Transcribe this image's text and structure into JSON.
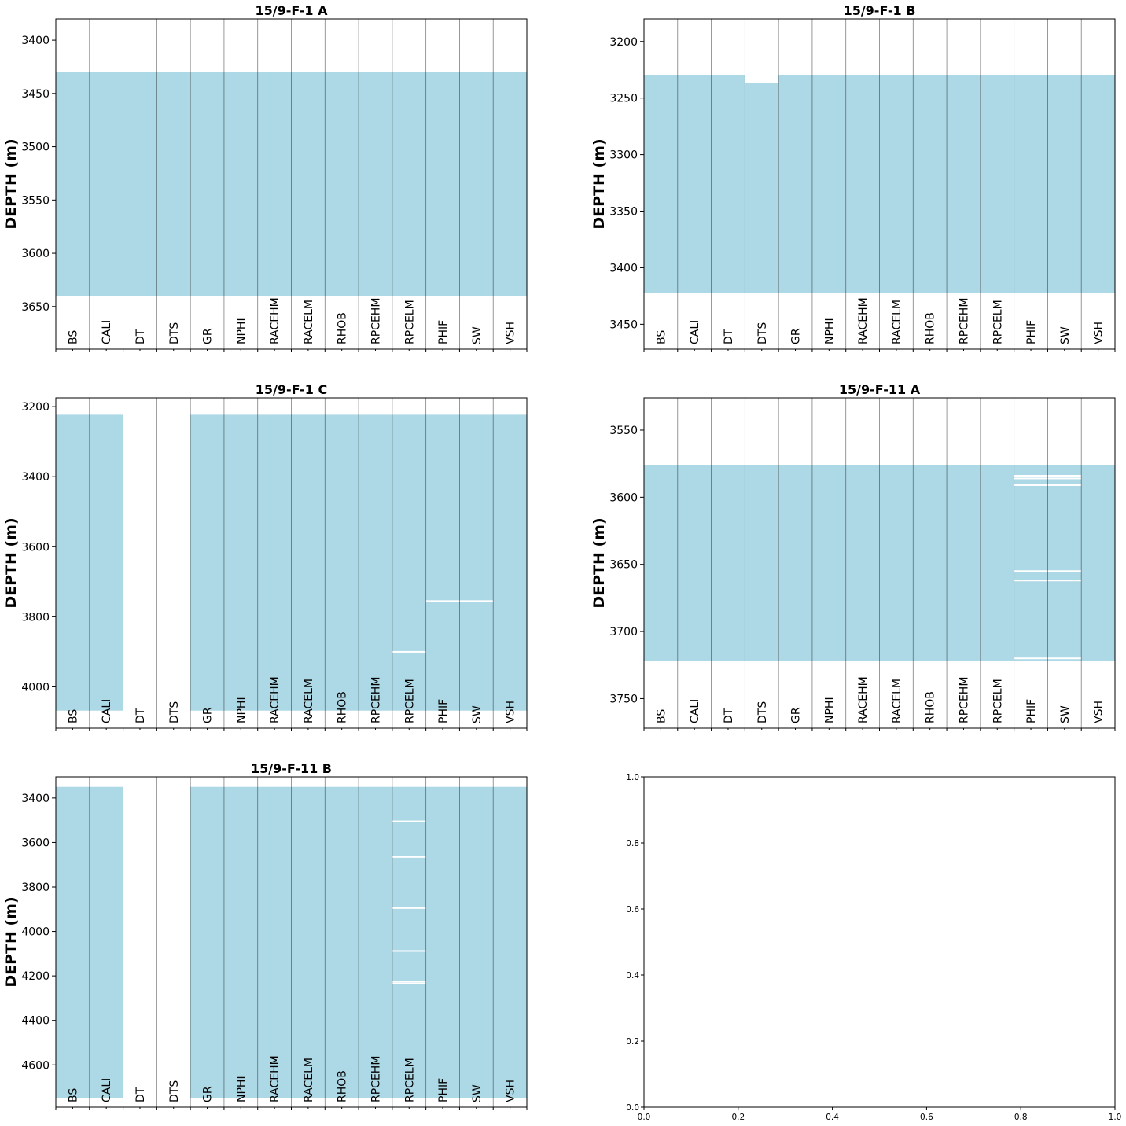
{
  "chart_data": [
    {
      "type": "heatmap",
      "title": "15/9-F-1 A",
      "ylabel": "DEPTH (m)",
      "ylim": [
        3690,
        3380
      ],
      "yticks": [
        3400,
        3450,
        3500,
        3550,
        3600,
        3650
      ],
      "columns": [
        "BS",
        "CALI",
        "DT",
        "DTS",
        "GR",
        "NPHI",
        "RACEHM",
        "RACELM",
        "RHOB",
        "RPCEHM",
        "RPCELM",
        "PHIF",
        "SW",
        "VSH"
      ],
      "fill_color": "#add8e6",
      "coverage": [
        {
          "curve": "BS",
          "top": 3430,
          "bottom": 3640
        },
        {
          "curve": "CALI",
          "top": 3430,
          "bottom": 3640
        },
        {
          "curve": "DT",
          "top": 3430,
          "bottom": 3640
        },
        {
          "curve": "DTS",
          "top": 3430,
          "bottom": 3640
        },
        {
          "curve": "GR",
          "top": 3430,
          "bottom": 3640
        },
        {
          "curve": "NPHI",
          "top": 3430,
          "bottom": 3640
        },
        {
          "curve": "RACEHM",
          "top": 3430,
          "bottom": 3640
        },
        {
          "curve": "RACELM",
          "top": 3430,
          "bottom": 3640
        },
        {
          "curve": "RHOB",
          "top": 3430,
          "bottom": 3640
        },
        {
          "curve": "RPCEHM",
          "top": 3430,
          "bottom": 3640
        },
        {
          "curve": "RPCELM",
          "top": 3430,
          "bottom": 3640
        },
        {
          "curve": "PHIF",
          "top": 3430,
          "bottom": 3640
        },
        {
          "curve": "SW",
          "top": 3430,
          "bottom": 3640
        },
        {
          "curve": "VSH",
          "top": 3430,
          "bottom": 3640
        }
      ],
      "gaps": []
    },
    {
      "type": "heatmap",
      "title": "15/9-F-1 B",
      "ylabel": "DEPTH (m)",
      "ylim": [
        3472,
        3180
      ],
      "yticks": [
        3200,
        3250,
        3300,
        3350,
        3400,
        3450
      ],
      "columns": [
        "BS",
        "CALI",
        "DT",
        "DTS",
        "GR",
        "NPHI",
        "RACEHM",
        "RACELM",
        "RHOB",
        "RPCEHM",
        "RPCELM",
        "PHIF",
        "SW",
        "VSH"
      ],
      "fill_color": "#add8e6",
      "coverage": [
        {
          "curve": "BS",
          "top": 3230,
          "bottom": 3422
        },
        {
          "curve": "CALI",
          "top": 3230,
          "bottom": 3422
        },
        {
          "curve": "DT",
          "top": 3230,
          "bottom": 3422
        },
        {
          "curve": "DTS",
          "top": 3237,
          "bottom": 3422
        },
        {
          "curve": "GR",
          "top": 3230,
          "bottom": 3422
        },
        {
          "curve": "NPHI",
          "top": 3230,
          "bottom": 3422
        },
        {
          "curve": "RACEHM",
          "top": 3230,
          "bottom": 3422
        },
        {
          "curve": "RACELM",
          "top": 3230,
          "bottom": 3422
        },
        {
          "curve": "RHOB",
          "top": 3230,
          "bottom": 3422
        },
        {
          "curve": "RPCEHM",
          "top": 3230,
          "bottom": 3422
        },
        {
          "curve": "RPCELM",
          "top": 3230,
          "bottom": 3422
        },
        {
          "curve": "PHIF",
          "top": 3230,
          "bottom": 3422
        },
        {
          "curve": "SW",
          "top": 3230,
          "bottom": 3422
        },
        {
          "curve": "VSH",
          "top": 3230,
          "bottom": 3422
        }
      ],
      "gaps": []
    },
    {
      "type": "heatmap",
      "title": "15/9-F-1 C",
      "ylabel": "DEPTH (m)",
      "ylim": [
        4118,
        3175
      ],
      "yticks": [
        3200,
        3400,
        3600,
        3800,
        4000
      ],
      "columns": [
        "BS",
        "CALI",
        "DT",
        "DTS",
        "GR",
        "NPHI",
        "RACEHM",
        "RACELM",
        "RHOB",
        "RPCEHM",
        "RPCELM",
        "PHIF",
        "SW",
        "VSH"
      ],
      "fill_color": "#add8e6",
      "coverage": [
        {
          "curve": "BS",
          "top": 3223,
          "bottom": 4068
        },
        {
          "curve": "CALI",
          "top": 3223,
          "bottom": 4068
        },
        {
          "curve": "GR",
          "top": 3223,
          "bottom": 4068
        },
        {
          "curve": "NPHI",
          "top": 3223,
          "bottom": 4068
        },
        {
          "curve": "RACEHM",
          "top": 3223,
          "bottom": 4068
        },
        {
          "curve": "RACELM",
          "top": 3223,
          "bottom": 4068
        },
        {
          "curve": "RHOB",
          "top": 3223,
          "bottom": 4068
        },
        {
          "curve": "RPCEHM",
          "top": 3223,
          "bottom": 4068
        },
        {
          "curve": "RPCELM",
          "top": 3223,
          "bottom": 4068
        },
        {
          "curve": "PHIF",
          "top": 3223,
          "bottom": 4068
        },
        {
          "curve": "SW",
          "top": 3223,
          "bottom": 4068
        },
        {
          "curve": "VSH",
          "top": 3223,
          "bottom": 4068
        }
      ],
      "gaps": [
        {
          "curve": "RPCELM",
          "depth": 3900
        },
        {
          "curve": "PHIF",
          "depth": 3755
        },
        {
          "curve": "SW",
          "depth": 3755
        }
      ]
    },
    {
      "type": "heatmap",
      "title": "15/9-F-11 A",
      "ylabel": "DEPTH (m)",
      "ylim": [
        3772,
        3526
      ],
      "yticks": [
        3550,
        3600,
        3650,
        3700,
        3750
      ],
      "columns": [
        "BS",
        "CALI",
        "DT",
        "DTS",
        "GR",
        "NPHI",
        "RACEHM",
        "RACELM",
        "RHOB",
        "RPCEHM",
        "RPCELM",
        "PHIF",
        "SW",
        "VSH"
      ],
      "fill_color": "#add8e6",
      "coverage": [
        {
          "curve": "BS",
          "top": 3576,
          "bottom": 3722
        },
        {
          "curve": "CALI",
          "top": 3576,
          "bottom": 3722
        },
        {
          "curve": "DT",
          "top": 3576,
          "bottom": 3722
        },
        {
          "curve": "DTS",
          "top": 3576,
          "bottom": 3722
        },
        {
          "curve": "GR",
          "top": 3576,
          "bottom": 3722
        },
        {
          "curve": "NPHI",
          "top": 3576,
          "bottom": 3722
        },
        {
          "curve": "RACEHM",
          "top": 3576,
          "bottom": 3722
        },
        {
          "curve": "RACELM",
          "top": 3576,
          "bottom": 3722
        },
        {
          "curve": "RHOB",
          "top": 3576,
          "bottom": 3722
        },
        {
          "curve": "RPCEHM",
          "top": 3576,
          "bottom": 3722
        },
        {
          "curve": "RPCELM",
          "top": 3576,
          "bottom": 3722
        },
        {
          "curve": "PHIF",
          "top": 3576,
          "bottom": 3722
        },
        {
          "curve": "SW",
          "top": 3576,
          "bottom": 3722
        },
        {
          "curve": "VSH",
          "top": 3576,
          "bottom": 3722
        }
      ],
      "gaps": [
        {
          "curve": "PHIF",
          "depth": 3584
        },
        {
          "curve": "PHIF",
          "depth": 3586
        },
        {
          "curve": "PHIF",
          "depth": 3591
        },
        {
          "curve": "PHIF",
          "depth": 3655
        },
        {
          "curve": "PHIF",
          "depth": 3662
        },
        {
          "curve": "PHIF",
          "depth": 3720
        },
        {
          "curve": "SW",
          "depth": 3584
        },
        {
          "curve": "SW",
          "depth": 3586
        },
        {
          "curve": "SW",
          "depth": 3591
        },
        {
          "curve": "SW",
          "depth": 3655
        },
        {
          "curve": "SW",
          "depth": 3662
        },
        {
          "curve": "SW",
          "depth": 3720
        }
      ]
    },
    {
      "type": "heatmap",
      "title": "15/9-F-11 B",
      "ylabel": "DEPTH (m)",
      "ylim": [
        4790,
        3305
      ],
      "yticks": [
        3400,
        3600,
        3800,
        4000,
        4200,
        4400,
        4600
      ],
      "columns": [
        "BS",
        "CALI",
        "DT",
        "DTS",
        "GR",
        "NPHI",
        "RACEHM",
        "RACELM",
        "RHOB",
        "RPCEHM",
        "RPCELM",
        "PHIF",
        "SW",
        "VSH"
      ],
      "fill_color": "#add8e6",
      "coverage": [
        {
          "curve": "BS",
          "top": 3350,
          "bottom": 4748
        },
        {
          "curve": "CALI",
          "top": 3350,
          "bottom": 4748
        },
        {
          "curve": "GR",
          "top": 3350,
          "bottom": 4748
        },
        {
          "curve": "NPHI",
          "top": 3350,
          "bottom": 4748
        },
        {
          "curve": "RACEHM",
          "top": 3350,
          "bottom": 4748
        },
        {
          "curve": "RACELM",
          "top": 3350,
          "bottom": 4748
        },
        {
          "curve": "RHOB",
          "top": 3350,
          "bottom": 4748
        },
        {
          "curve": "RPCEHM",
          "top": 3350,
          "bottom": 4748
        },
        {
          "curve": "RPCELM",
          "top": 3350,
          "bottom": 4748
        },
        {
          "curve": "PHIF",
          "top": 3350,
          "bottom": 4748
        },
        {
          "curve": "SW",
          "top": 3350,
          "bottom": 4748
        },
        {
          "curve": "VSH",
          "top": 3350,
          "bottom": 4748
        }
      ],
      "gaps": [
        {
          "curve": "RPCELM",
          "depth": 3505
        },
        {
          "curve": "RPCELM",
          "depth": 3665
        },
        {
          "curve": "RPCELM",
          "depth": 3895
        },
        {
          "curve": "RPCELM",
          "depth": 4088
        },
        {
          "curve": "RPCELM",
          "depth": 4225
        },
        {
          "curve": "RPCELM",
          "depth": 4233
        }
      ]
    },
    {
      "type": "scatter",
      "title": "",
      "xlim": [
        0,
        1
      ],
      "ylim": [
        0,
        1
      ],
      "xticks": [
        "0.0",
        "0.2",
        "0.4",
        "0.6",
        "0.8",
        "1.0"
      ],
      "yticks": [
        "0.0",
        "0.2",
        "0.4",
        "0.6",
        "0.8",
        "1.0"
      ],
      "series": []
    }
  ]
}
